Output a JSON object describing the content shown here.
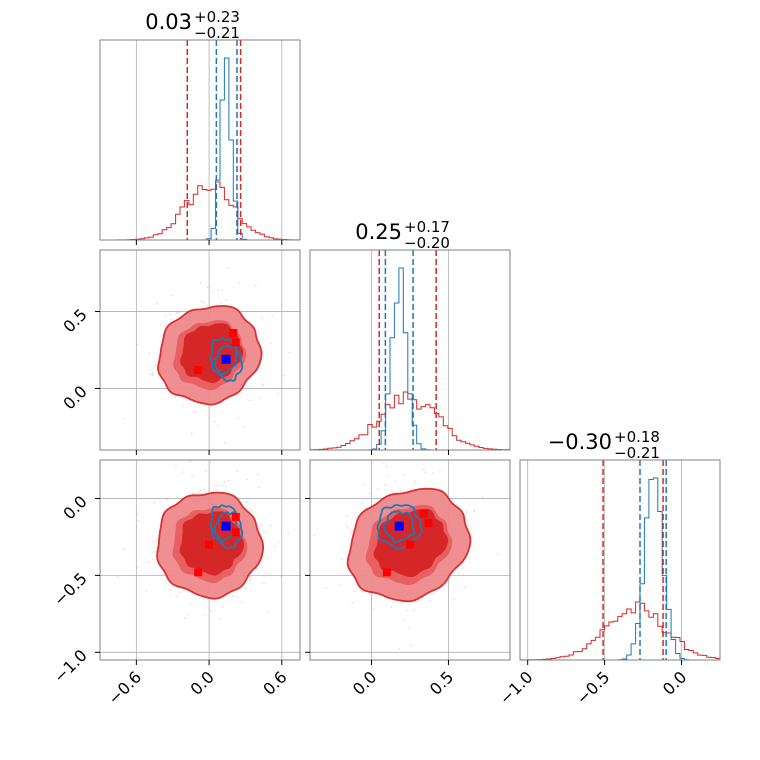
{
  "colors": {
    "red": "#d62728",
    "red_mid": "#ef8a8c",
    "blue": "#1f77b4",
    "blue_marker": "#0000ff",
    "grid": "#b0b0b0",
    "frame": "#808080"
  },
  "chart_data": {
    "type": "corner",
    "grid": true,
    "parameters": [
      {
        "title_value": "0.03",
        "title_plus": "+0.23",
        "title_minus": "−0.21",
        "range": [
          -0.9,
          0.75
        ],
        "ticks": [
          -0.6,
          0.0,
          0.6
        ],
        "tick_labels": [
          "−0.6",
          "0.0",
          "0.6"
        ],
        "red_quantiles": [
          -0.18,
          0.03,
          0.26
        ],
        "blue_quantiles": [
          0.06,
          0.23
        ],
        "red_hist_center": 0.0,
        "red_hist_sigma": 0.2,
        "blue_hist_center": 0.14,
        "blue_hist_sigma": 0.045
      },
      {
        "title_value": "0.25",
        "title_plus": "+0.17",
        "title_minus": "−0.20",
        "range": [
          -0.4,
          0.9
        ],
        "ticks": [
          0.0,
          0.5
        ],
        "tick_labels": [
          "0.0",
          "0.5"
        ],
        "red_quantiles": [
          0.05,
          0.25,
          0.42
        ],
        "blue_quantiles": [
          0.09,
          0.27
        ],
        "red_hist_center": 0.24,
        "red_hist_sigma": 0.19,
        "blue_hist_center": 0.18,
        "blue_hist_sigma": 0.05
      },
      {
        "title_value": "−0.30",
        "title_plus": "+0.18",
        "title_minus": "−0.21",
        "range": [
          -1.05,
          0.25
        ],
        "ticks": [
          -1.0,
          -0.5,
          0.0
        ],
        "tick_labels": [
          "−1.0",
          "−0.5",
          "0.0"
        ],
        "red_quantiles": [
          -0.51,
          -0.3,
          -0.12
        ],
        "blue_quantiles": [
          -0.27,
          -0.1
        ],
        "red_hist_center": -0.3,
        "red_hist_sigma": 0.2,
        "blue_hist_center": -0.18,
        "blue_hist_sigma": 0.06
      }
    ],
    "pair_panels": [
      {
        "x_param": 0,
        "y_param": 1,
        "red_center": [
          0.0,
          0.22
        ],
        "red_spread": [
          0.2,
          0.18
        ],
        "red_corr": 0.5,
        "blue_center": [
          0.14,
          0.19
        ],
        "blue_spread": [
          0.06,
          0.07
        ],
        "red_points": [
          [
            -0.09,
            0.12
          ],
          [
            0.2,
            0.36
          ],
          [
            0.22,
            0.3
          ]
        ],
        "blue_point": [
          0.14,
          0.19
        ]
      },
      {
        "x_param": 0,
        "y_param": 2,
        "red_center": [
          0.0,
          -0.3
        ],
        "red_spread": [
          0.2,
          0.2
        ],
        "red_corr": 0.5,
        "blue_center": [
          0.14,
          -0.18
        ],
        "blue_spread": [
          0.06,
          0.07
        ],
        "red_points": [
          [
            -0.09,
            -0.48
          ],
          [
            0.0,
            -0.3
          ],
          [
            0.22,
            -0.12
          ],
          [
            0.22,
            -0.22
          ]
        ],
        "blue_point": [
          0.14,
          -0.18
        ]
      },
      {
        "x_param": 1,
        "y_param": 2,
        "red_center": [
          0.24,
          -0.3
        ],
        "red_spread": [
          0.19,
          0.2
        ],
        "red_corr": 0.5,
        "blue_center": [
          0.18,
          -0.18
        ],
        "blue_spread": [
          0.07,
          0.07
        ],
        "red_points": [
          [
            0.1,
            -0.48
          ],
          [
            0.25,
            -0.3
          ],
          [
            0.34,
            -0.1
          ],
          [
            0.37,
            -0.16
          ]
        ],
        "blue_point": [
          0.18,
          -0.18
        ]
      }
    ],
    "pair_y_ticks": {
      "1": {
        "ticks": [
          0.0,
          0.5
        ],
        "tick_labels": [
          "0.0",
          "0.5"
        ]
      },
      "2": {
        "ticks": [
          -1.0,
          -0.5,
          0.0
        ],
        "tick_labels": [
          "−1.0",
          "−0.5",
          "0.0"
        ]
      }
    }
  }
}
